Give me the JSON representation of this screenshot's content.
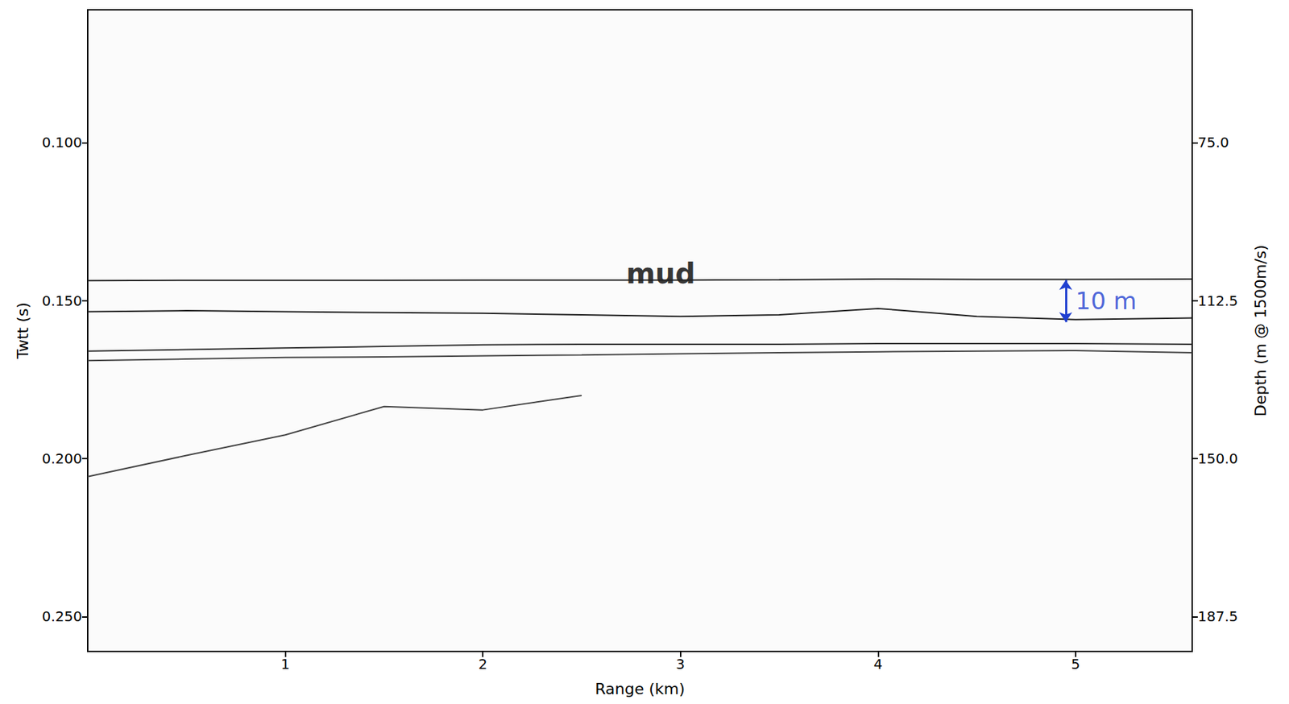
{
  "chart_data": {
    "type": "line",
    "xlabel": "Range (km)",
    "ylabel": "Twtt (s)",
    "y2label": "Depth (m @ 1500m/s)",
    "xlim": [
      0,
      5.59
    ],
    "xticks": [
      1,
      2,
      3,
      4,
      5
    ],
    "ylim": [
      0.058,
      0.261
    ],
    "yticks": [
      {
        "value": 0.1,
        "label": "0.100"
      },
      {
        "value": 0.15,
        "label": "0.150"
      },
      {
        "value": 0.2,
        "label": "0.200"
      },
      {
        "value": 0.25,
        "label": "0.250"
      }
    ],
    "y2lim": [
      43.5,
      195.75
    ],
    "y2ticks": [
      {
        "value": 75,
        "label": "75.0"
      },
      112.5,
      {
        "value": 150,
        "label": "150.0"
      },
      187.5
    ],
    "grid": false,
    "x": [
      0,
      0.5,
      1,
      1.5,
      2,
      2.5,
      3,
      3.5,
      4,
      4.5,
      5,
      5.59
    ],
    "series": [
      {
        "color": "#222222",
        "marker": "none",
        "line_style": "solid",
        "values": [
          0.1437,
          0.1436,
          0.1436,
          0.1436,
          0.1435,
          0.1435,
          0.1435,
          0.1434,
          0.1432,
          0.1433,
          0.1433,
          0.1432
        ]
      },
      {
        "color": "#222222",
        "marker": "none",
        "line_style": "solid",
        "values": [
          0.1535,
          0.1532,
          0.1535,
          0.1538,
          0.154,
          0.1545,
          0.155,
          0.1545,
          0.1525,
          0.155,
          0.156,
          0.1555
        ]
      },
      {
        "color": "#333333",
        "marker": "none",
        "line_style": "solid",
        "values": [
          0.166,
          0.1655,
          0.165,
          0.1645,
          0.164,
          0.1638,
          0.1638,
          0.1638,
          0.1636,
          0.1636,
          0.1636,
          0.1638
        ]
      },
      {
        "color": "#444444",
        "marker": "none",
        "line_style": "solid",
        "values": [
          0.169,
          0.1685,
          0.168,
          0.1678,
          0.1675,
          0.1672,
          0.1668,
          0.1665,
          0.1662,
          0.166,
          0.1658,
          0.1665
        ]
      },
      {
        "color": "#444444",
        "marker": "none",
        "line_style": "solid",
        "values": [
          0.2057,
          0.199,
          0.1925,
          0.1835,
          0.1846,
          0.18,
          null,
          null,
          null,
          null,
          null,
          null
        ]
      }
    ],
    "annotations": [
      {
        "text": "mud",
        "x": 2.9,
        "y": 0.1415,
        "color": "#000000"
      },
      {
        "text": "10 m",
        "x": 4.95,
        "y": [
          0.1435,
          0.1568
        ],
        "color": "#1f3fd0"
      }
    ]
  }
}
